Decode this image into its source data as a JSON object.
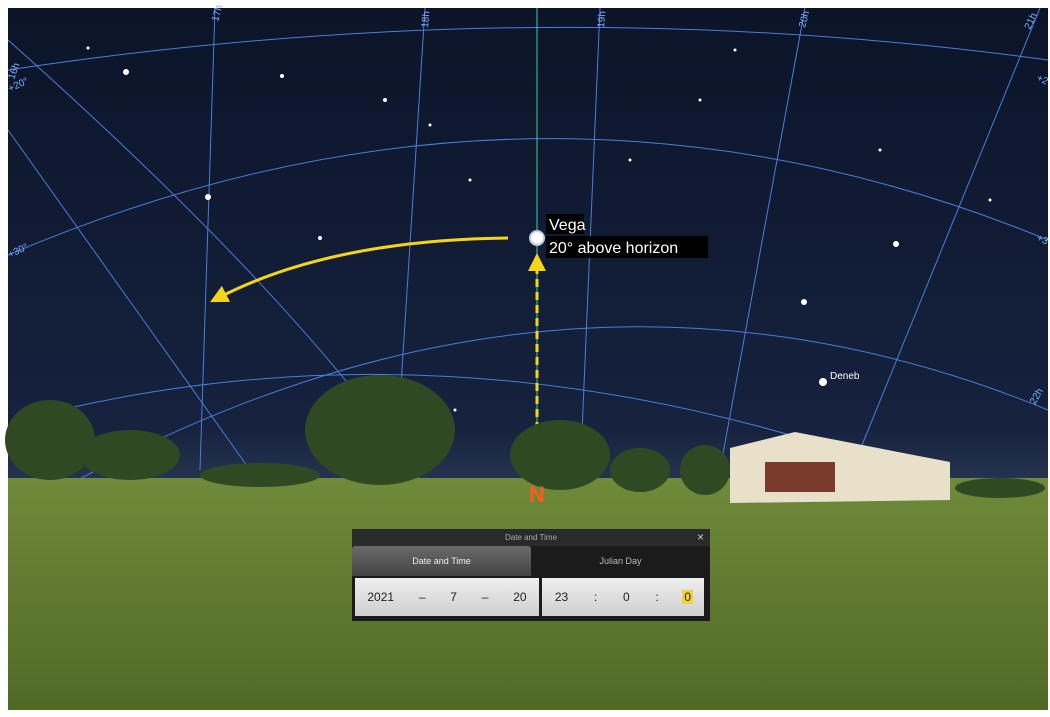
{
  "sky_grid": {
    "hour_labels": [
      "16h",
      "17h",
      "18h",
      "19h",
      "20h",
      "21h",
      "22h"
    ],
    "dec_labels": [
      "+20°",
      "+30°",
      "+2",
      "+3"
    ]
  },
  "stars": [
    {
      "label": "Vega",
      "annotation": "20° above horizon"
    },
    {
      "label": "Deneb"
    }
  ],
  "compass": "N",
  "dialog": {
    "title": "Date and Time",
    "tabs": [
      "Date and Time",
      "Julian Day"
    ],
    "date": {
      "year": 2021,
      "month": 7,
      "day": 20
    },
    "time": {
      "hour": 23,
      "minute": 0,
      "second": 0
    },
    "separators": [
      "–",
      "–",
      ":",
      ":"
    ]
  }
}
